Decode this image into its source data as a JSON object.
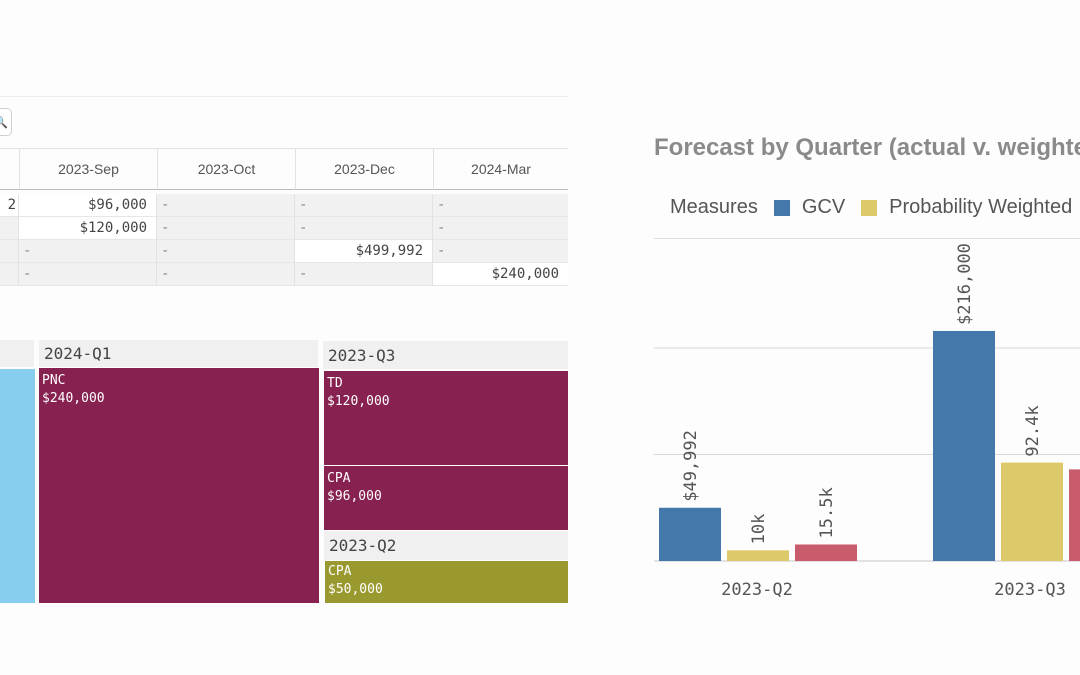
{
  "table": {
    "columns": [
      "2023-Sep",
      "2023-Oct",
      "2023-Dec",
      "2024-Mar"
    ],
    "clipped_value": "2",
    "rows": [
      [
        "$96,000",
        "-",
        "-",
        "-"
      ],
      [
        "$120,000",
        "-",
        "-",
        "-"
      ],
      [
        "-",
        "-",
        "$499,992",
        "-"
      ],
      [
        "-",
        "-",
        "-",
        "$240,000"
      ]
    ]
  },
  "treemap": {
    "groups": [
      {
        "label": "2024-Q1",
        "items": [
          {
            "name": "PNC",
            "value": "$240,000",
            "color": "#872150"
          }
        ]
      },
      {
        "label": "2023-Q3",
        "items": [
          {
            "name": "TD",
            "value": "$120,000",
            "color": "#872150"
          },
          {
            "name": "CPA",
            "value": "$96,000",
            "color": "#872150"
          }
        ]
      },
      {
        "label": "2023-Q2",
        "items": [
          {
            "name": "CPA",
            "value": "$50,000",
            "color": "#9a9930"
          }
        ]
      }
    ],
    "clipped_color": "#87cded"
  },
  "chart": {
    "title": "Forecast by Quarter (actual v. weighted)",
    "legend_title": "Measures",
    "legend_items": [
      {
        "name": "GCV",
        "color": "#4477aa"
      },
      {
        "name": "Probability Weighted",
        "color": "#ddc86a"
      }
    ]
  },
  "chart_data": {
    "type": "bar",
    "categories": [
      "2023-Q2",
      "2023-Q3"
    ],
    "series": [
      {
        "name": "GCV",
        "color": "#4477aa",
        "values": [
          49992,
          216000
        ],
        "labels": [
          "$49,992",
          "$216,000"
        ]
      },
      {
        "name": "Probability Weighted",
        "color": "#ddc86a",
        "values": [
          10000,
          92400
        ],
        "labels": [
          "10k",
          "92.4k"
        ]
      },
      {
        "color": "#c85c6c",
        "values": [
          15500,
          86000
        ],
        "labels": [
          "15.5k",
          ""
        ]
      }
    ],
    "ylim": [
      0,
      400000
    ],
    "grid": true
  }
}
